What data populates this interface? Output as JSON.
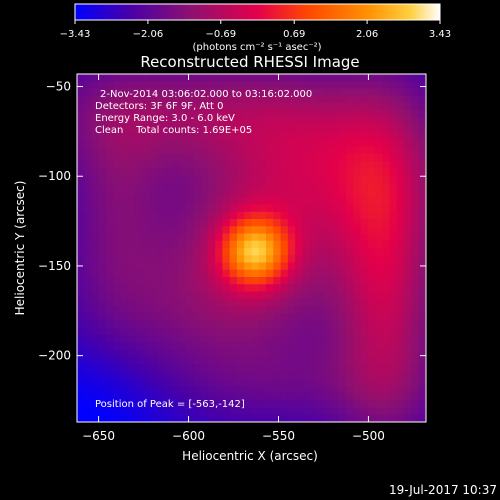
{
  "chart_data": {
    "type": "heatmap",
    "title": "Reconstructed RHESSI Image",
    "xlabel": "Heliocentric X (arcsec)",
    "ylabel": "Heliocentric Y (arcsec)",
    "xlim": [
      -662,
      -468
    ],
    "ylim": [
      -237,
      -43
    ],
    "x_ticks": [
      -650,
      -600,
      -550,
      -500
    ],
    "x_tick_labels": [
      "−650",
      "−600",
      "−550",
      "−500"
    ],
    "y_ticks": [
      -50,
      -100,
      -150,
      -200
    ],
    "y_tick_labels": [
      "−50",
      "−100",
      "−150",
      "−200"
    ],
    "colorbar": {
      "min": -3.43,
      "max": 3.43,
      "ticks": [
        -3.43,
        -2.06,
        -0.69,
        0.69,
        2.06,
        3.43
      ],
      "tick_labels": [
        "−3.43",
        "−2.06",
        "−0.69",
        "0.69",
        "2.06",
        "3.43"
      ],
      "units_label": "(photons cm⁻² s⁻¹ asec⁻²)",
      "colormap": [
        "#0000ff",
        "#4800a8",
        "#8e1070",
        "#e4004a",
        "#ff4800",
        "#ff9000",
        "#ffd040",
        "#ffffff"
      ]
    },
    "annotations": {
      "time_range": "2-Nov-2014 03:06:02.000 to 03:16:02.000",
      "detectors": "Detectors: 3F 6F 9F, Att 0",
      "energy": "Energy Range: 3.0 - 6.0 keV",
      "clean": "Clean    Total counts: 1.69E+05",
      "peak": "Position of Peak = [-563,-142]"
    },
    "peak": {
      "x": -563,
      "y": -142
    }
  },
  "footer": {
    "date_stamp": "19-Jul-2017 10:37"
  }
}
